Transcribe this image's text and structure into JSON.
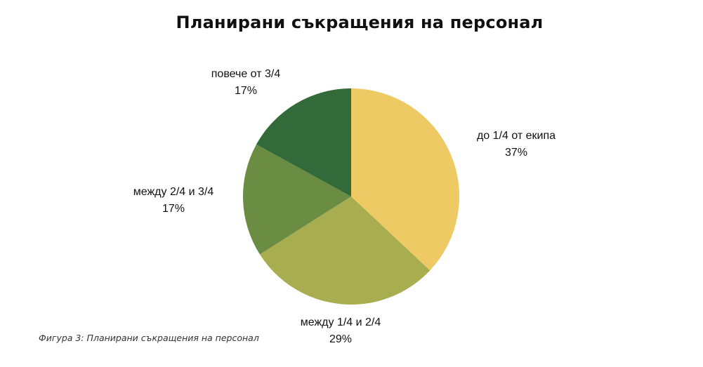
{
  "chart_data": {
    "type": "pie",
    "title": "Планирани съкращения на персонал",
    "slices": [
      {
        "label": "до 1/4 от екипа",
        "value": 37,
        "value_text": "37%",
        "color": "#EDCA64"
      },
      {
        "label": "между 1/4 и 2/4",
        "value": 29,
        "value_text": "29%",
        "color": "#A8AE50"
      },
      {
        "label": "между 2/4 и 3/4",
        "value": 17,
        "value_text": "17%",
        "color": "#6A8C43"
      },
      {
        "label": "повече от 3/4",
        "value": 17,
        "value_text": "17%",
        "color": "#326A39"
      }
    ],
    "start": "top",
    "direction": "clockwise",
    "legend": "none"
  },
  "caption": "Фигура 3: Планирани съкращения на персонал"
}
